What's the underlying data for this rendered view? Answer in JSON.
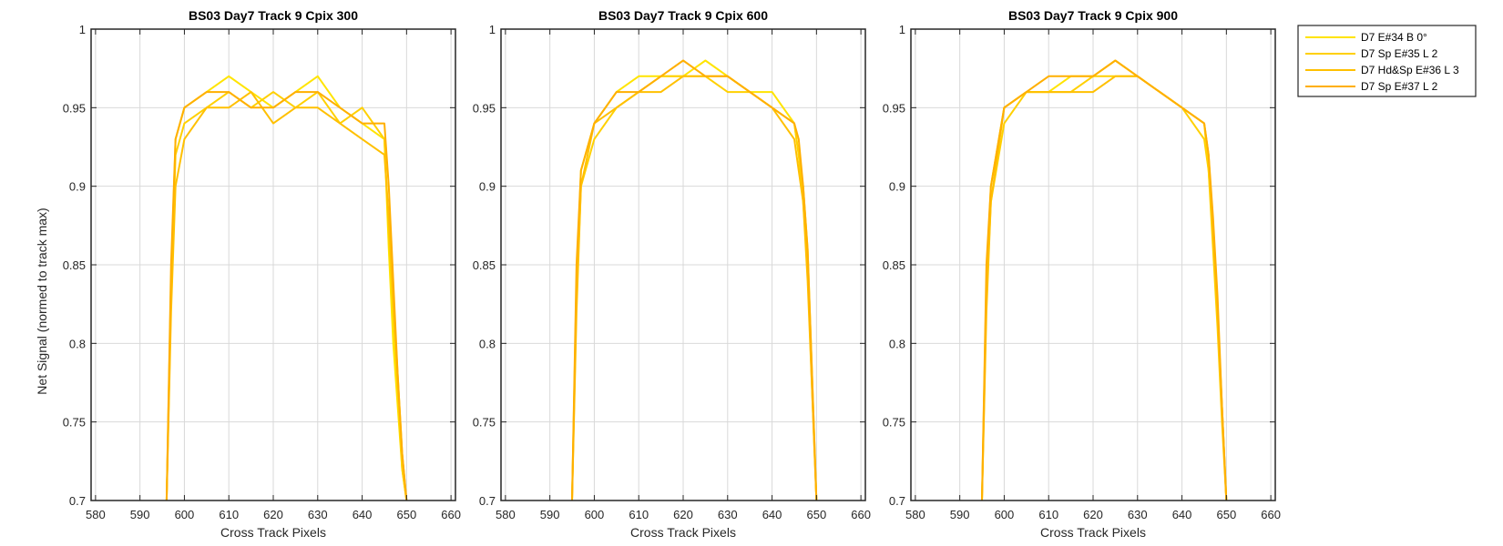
{
  "figure": {
    "ylabel": "Net Signal (normed to track max)",
    "xlabel": "Cross Track Pixels"
  },
  "colors": {
    "background": "#ffffff",
    "axes_border": "#262626",
    "grid": "#d9d9d9",
    "series": [
      "#FFE400",
      "#FFD000",
      "#FFC000",
      "#FFAF00"
    ]
  },
  "legend": {
    "placement": "outside-top-right",
    "entries": [
      "D7 E#34 B 0°",
      "D7 Sp E#35 L 2",
      "D7 Hd&Sp E#36 L 3",
      "D7 Sp E#37 L 2"
    ]
  },
  "chart_data": [
    {
      "type": "line",
      "title": "BS03 Day7 Track 9  Cpix 300",
      "xlabel": "Cross Track Pixels",
      "ylabel": "Net Signal (normed to track max)",
      "xlim": [
        579,
        661
      ],
      "ylim": [
        0.7,
        1.0
      ],
      "xticks": [
        580,
        590,
        600,
        610,
        620,
        630,
        640,
        650,
        660
      ],
      "yticks": [
        0.7,
        0.75,
        0.8,
        0.85,
        0.9,
        0.95,
        1.0
      ],
      "ytick_labels": [
        "0.7",
        "0.75",
        "0.8",
        "0.85",
        "0.9",
        "0.95",
        "1"
      ],
      "grid": true,
      "series": [
        {
          "name": "D7 E#34 B 0°",
          "x": [
            596,
            597,
            598,
            600,
            605,
            610,
            615,
            620,
            625,
            630,
            635,
            640,
            645,
            646,
            647,
            648,
            649,
            650
          ],
          "y": [
            0.7,
            0.84,
            0.93,
            0.95,
            0.96,
            0.97,
            0.96,
            0.95,
            0.96,
            0.97,
            0.95,
            0.94,
            0.93,
            0.86,
            0.8,
            0.76,
            0.72,
            0.7
          ]
        },
        {
          "name": "D7 Sp E#35 L 2",
          "x": [
            596,
            597,
            598,
            600,
            605,
            610,
            615,
            620,
            625,
            630,
            635,
            640,
            645,
            646,
            647,
            648,
            649,
            650
          ],
          "y": [
            0.7,
            0.83,
            0.92,
            0.94,
            0.95,
            0.96,
            0.95,
            0.96,
            0.95,
            0.96,
            0.94,
            0.95,
            0.93,
            0.87,
            0.82,
            0.77,
            0.72,
            0.7
          ]
        },
        {
          "name": "D7 Hd&Sp E#36 L 3",
          "x": [
            596,
            597,
            598,
            600,
            605,
            610,
            615,
            620,
            625,
            630,
            635,
            640,
            645,
            646,
            647,
            648,
            649,
            650
          ],
          "y": [
            0.7,
            0.82,
            0.9,
            0.93,
            0.95,
            0.95,
            0.96,
            0.94,
            0.95,
            0.95,
            0.94,
            0.93,
            0.92,
            0.88,
            0.83,
            0.78,
            0.73,
            0.7
          ]
        },
        {
          "name": "D7 Sp E#37 L 2",
          "x": [
            596,
            597,
            598,
            600,
            605,
            610,
            615,
            620,
            625,
            630,
            635,
            640,
            645,
            646,
            647,
            648,
            649,
            650
          ],
          "y": [
            0.7,
            0.85,
            0.93,
            0.95,
            0.96,
            0.96,
            0.95,
            0.95,
            0.96,
            0.96,
            0.95,
            0.94,
            0.94,
            0.9,
            0.84,
            0.78,
            0.73,
            0.7
          ]
        }
      ]
    },
    {
      "type": "line",
      "title": "BS03 Day7 Track 9  Cpix 600",
      "xlabel": "Cross Track Pixels",
      "ylabel": "",
      "xlim": [
        579,
        661
      ],
      "ylim": [
        0.7,
        1.0
      ],
      "xticks": [
        580,
        590,
        600,
        610,
        620,
        630,
        640,
        650,
        660
      ],
      "yticks": [
        0.7,
        0.75,
        0.8,
        0.85,
        0.9,
        0.95,
        1.0
      ],
      "ytick_labels": [
        "0.7",
        "0.75",
        "0.8",
        "0.85",
        "0.9",
        "0.95",
        "1"
      ],
      "grid": true,
      "series": [
        {
          "name": "D7 E#34 B 0°",
          "x": [
            595,
            596,
            597,
            600,
            605,
            610,
            615,
            620,
            625,
            630,
            635,
            640,
            645,
            646,
            647,
            648,
            649,
            650
          ],
          "y": [
            0.7,
            0.84,
            0.91,
            0.94,
            0.96,
            0.97,
            0.97,
            0.97,
            0.98,
            0.97,
            0.96,
            0.96,
            0.94,
            0.92,
            0.9,
            0.86,
            0.78,
            0.7
          ]
        },
        {
          "name": "D7 Sp E#35 L 2",
          "x": [
            595,
            596,
            597,
            600,
            605,
            610,
            615,
            620,
            625,
            630,
            635,
            640,
            645,
            646,
            647,
            648,
            649,
            650
          ],
          "y": [
            0.7,
            0.83,
            0.9,
            0.93,
            0.95,
            0.96,
            0.97,
            0.97,
            0.97,
            0.96,
            0.96,
            0.95,
            0.94,
            0.92,
            0.89,
            0.85,
            0.77,
            0.7
          ]
        },
        {
          "name": "D7 Hd&Sp E#36 L 3",
          "x": [
            595,
            596,
            597,
            600,
            605,
            610,
            615,
            620,
            625,
            630,
            635,
            640,
            645,
            646,
            647,
            648,
            649,
            650
          ],
          "y": [
            0.7,
            0.82,
            0.9,
            0.94,
            0.95,
            0.96,
            0.96,
            0.97,
            0.97,
            0.97,
            0.96,
            0.95,
            0.93,
            0.91,
            0.89,
            0.84,
            0.77,
            0.7
          ]
        },
        {
          "name": "D7 Sp E#37 L 2",
          "x": [
            595,
            596,
            597,
            600,
            605,
            610,
            615,
            620,
            625,
            630,
            635,
            640,
            645,
            646,
            647,
            648,
            649,
            650
          ],
          "y": [
            0.7,
            0.85,
            0.91,
            0.94,
            0.96,
            0.96,
            0.97,
            0.98,
            0.97,
            0.97,
            0.96,
            0.95,
            0.94,
            0.93,
            0.9,
            0.86,
            0.78,
            0.7
          ]
        }
      ]
    },
    {
      "type": "line",
      "title": "BS03 Day7 Track 9  Cpix 900",
      "xlabel": "Cross Track Pixels",
      "ylabel": "",
      "xlim": [
        579,
        661
      ],
      "ylim": [
        0.7,
        1.0
      ],
      "xticks": [
        580,
        590,
        600,
        610,
        620,
        630,
        640,
        650,
        660
      ],
      "yticks": [
        0.7,
        0.75,
        0.8,
        0.85,
        0.9,
        0.95,
        1.0
      ],
      "ytick_labels": [
        "0.7",
        "0.75",
        "0.8",
        "0.85",
        "0.9",
        "0.95",
        "1"
      ],
      "grid": true,
      "series": [
        {
          "name": "D7 E#34 B 0°",
          "x": [
            595,
            596,
            597,
            600,
            605,
            610,
            615,
            620,
            625,
            630,
            635,
            640,
            645,
            646,
            647,
            648,
            649,
            650
          ],
          "y": [
            0.7,
            0.84,
            0.9,
            0.95,
            0.96,
            0.96,
            0.97,
            0.97,
            0.98,
            0.97,
            0.96,
            0.95,
            0.94,
            0.91,
            0.87,
            0.82,
            0.76,
            0.7
          ]
        },
        {
          "name": "D7 Sp E#35 L 2",
          "x": [
            595,
            596,
            597,
            600,
            605,
            610,
            615,
            620,
            625,
            630,
            635,
            640,
            645,
            646,
            647,
            648,
            649,
            650
          ],
          "y": [
            0.7,
            0.83,
            0.89,
            0.94,
            0.96,
            0.96,
            0.96,
            0.97,
            0.97,
            0.97,
            0.96,
            0.95,
            0.93,
            0.91,
            0.86,
            0.81,
            0.75,
            0.7
          ]
        },
        {
          "name": "D7 Hd&Sp E#36 L 3",
          "x": [
            595,
            596,
            597,
            600,
            605,
            610,
            615,
            620,
            625,
            630,
            635,
            640,
            645,
            646,
            647,
            648,
            649,
            650
          ],
          "y": [
            0.7,
            0.82,
            0.89,
            0.95,
            0.96,
            0.96,
            0.96,
            0.96,
            0.97,
            0.97,
            0.96,
            0.95,
            0.94,
            0.92,
            0.87,
            0.82,
            0.76,
            0.7
          ]
        },
        {
          "name": "D7 Sp E#37 L 2",
          "x": [
            595,
            596,
            597,
            600,
            605,
            610,
            615,
            620,
            625,
            630,
            635,
            640,
            645,
            646,
            647,
            648,
            649,
            650
          ],
          "y": [
            0.7,
            0.85,
            0.9,
            0.95,
            0.96,
            0.97,
            0.97,
            0.97,
            0.98,
            0.97,
            0.96,
            0.95,
            0.94,
            0.92,
            0.88,
            0.83,
            0.76,
            0.7
          ]
        }
      ]
    }
  ]
}
